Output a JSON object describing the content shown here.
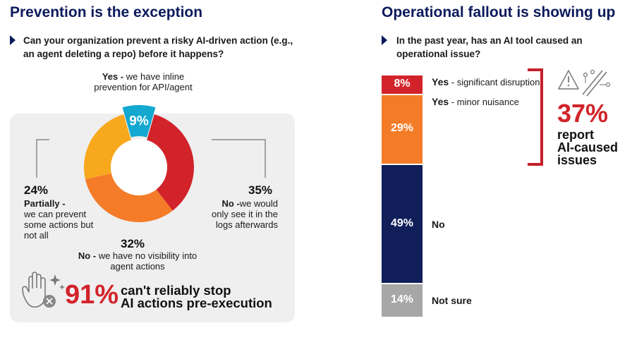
{
  "left": {
    "title": "Prevention is the exception",
    "question": "Can your organization prevent a risky AI-driven action (e.g., an agent deleting a repo) before it happens?",
    "labels": [
      {
        "pct": "9%",
        "bold": "Yes -",
        "text": " we have inline prevention for API/agent"
      },
      {
        "pct": "35%",
        "bold": "No -",
        "text": "we would only see it in the logs afterwards"
      },
      {
        "pct": "32%",
        "bold": "No -",
        "text": " we have no visibility into agent actions"
      },
      {
        "pct": "24%",
        "bold": "Partially -",
        "text": "we can prevent some actions but not all"
      }
    ],
    "summary": {
      "big": "91%",
      "line1": "can't reliably stop",
      "line2": "AI actions pre-execution"
    }
  },
  "right": {
    "title": "Operational fallout is showing up",
    "question": "In the past year, has an AI tool caused an operational issue?",
    "summary": {
      "big": "37%",
      "line1": "report",
      "line2": "AI-caused",
      "line3": "issues"
    }
  },
  "chart_data": [
    {
      "type": "pie",
      "subtype": "donut",
      "title": "Can your organization prevent a risky AI-driven action before it happens?",
      "categories": [
        "Yes - inline prevention",
        "No - only see it in logs afterwards",
        "No - no visibility",
        "Partially"
      ],
      "values": [
        9,
        35,
        32,
        24
      ],
      "colors": [
        "#12a8d0",
        "#d2232a",
        "#f47c28",
        "#f8a81d"
      ]
    },
    {
      "type": "bar",
      "subtype": "stacked-100",
      "title": "In the past year, has an AI tool caused an operational issue?",
      "categories": [
        "Yes - significant disruption",
        "Yes - minor nuisance",
        "No",
        "Not sure"
      ],
      "values": [
        8,
        29,
        49,
        14
      ],
      "value_labels": [
        "8%",
        "29%",
        "49%",
        "14%"
      ],
      "bold_labels": [
        "Yes",
        "Yes",
        "No",
        "Not sure"
      ],
      "sub_labels": [
        " - significant disruption",
        " - minor nuisance",
        "",
        ""
      ],
      "colors": [
        "#d2232a",
        "#f47c28",
        "#101e5a",
        "#a7a7a7"
      ]
    }
  ],
  "colors": {
    "navy": "#0c1a5c",
    "red": "#d2232a",
    "panel": "#efefef"
  }
}
